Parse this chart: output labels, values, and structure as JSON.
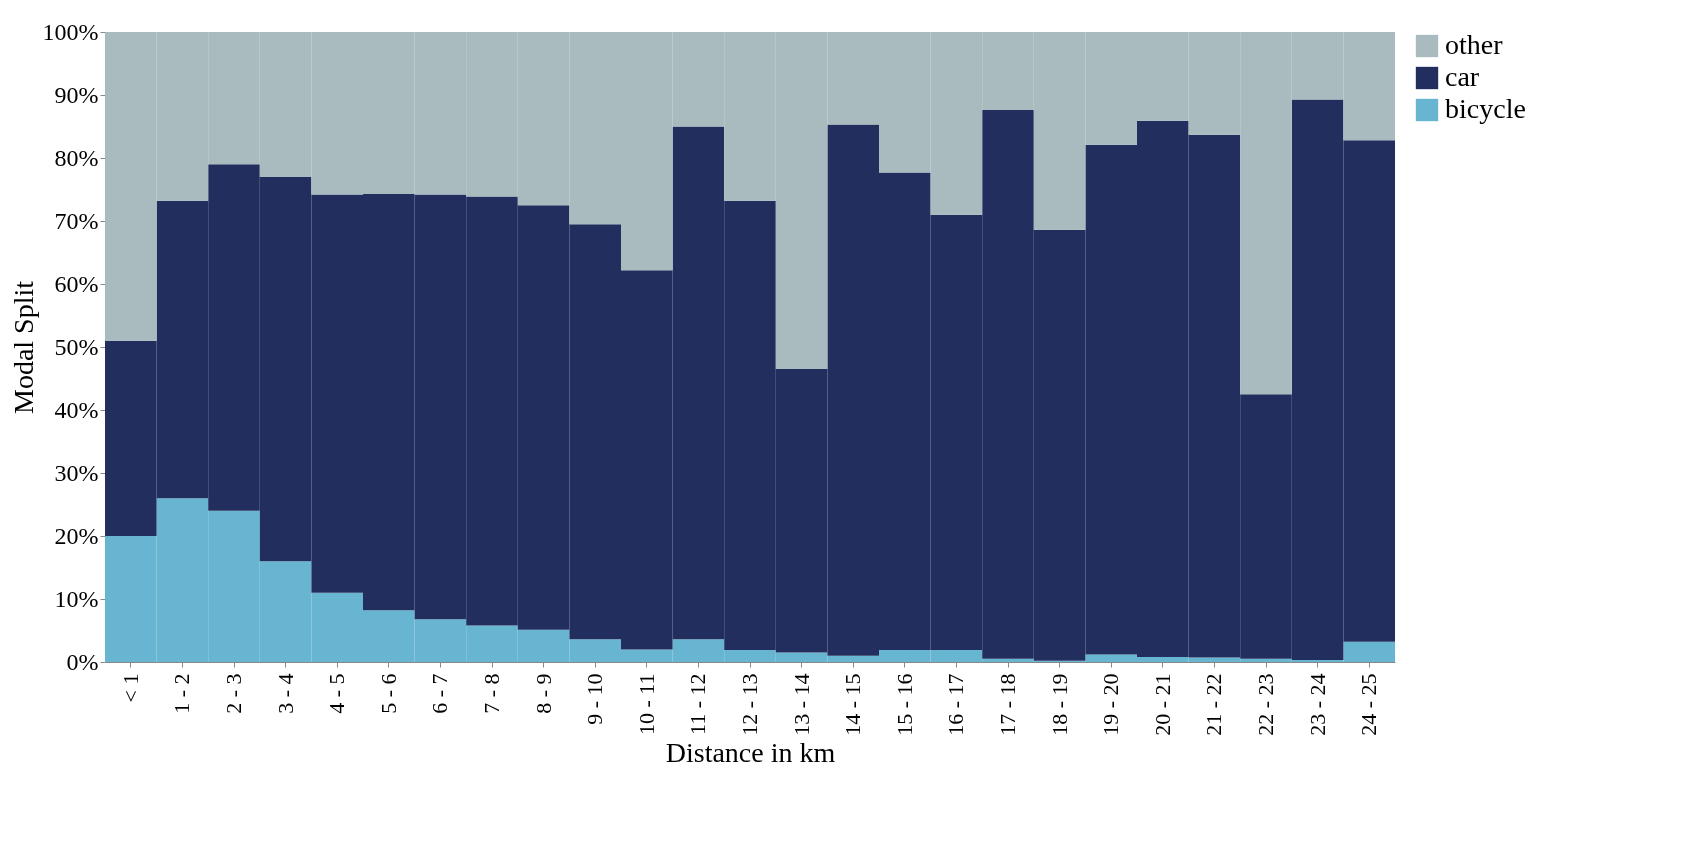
{
  "chart_data": {
    "type": "bar",
    "stacked": true,
    "xlabel": "Distance in km",
    "ylabel": "Modal Split",
    "categories": [
      "< 1",
      "1 - 2",
      "2 - 3",
      "3 - 4",
      "4 - 5",
      "5 - 6",
      "6 - 7",
      "7 - 8",
      "8 - 9",
      "9 - 10",
      "10 - 11",
      "11 - 12",
      "12 - 13",
      "13 - 14",
      "14 - 15",
      "15 - 16",
      "16 - 17",
      "17 - 18",
      "18 - 19",
      "19 - 20",
      "20 - 21",
      "21 - 22",
      "22 - 23",
      "23 - 24",
      "24 - 25"
    ],
    "series": [
      {
        "name": "bicycle",
        "color": "#67b5d0",
        "values": [
          20,
          26,
          24,
          16,
          11,
          8.2,
          6.8,
          5.8,
          5.1,
          3.6,
          2,
          3.6,
          1.9,
          1.5,
          1,
          1.9,
          1.9,
          0.5,
          0.2,
          1.2,
          0.8,
          0.7,
          0.5,
          0.3,
          3.2
        ]
      },
      {
        "name": "car",
        "color": "#212e5e",
        "values": [
          31,
          47.2,
          55,
          61,
          63.2,
          66.1,
          67.4,
          68.1,
          67.4,
          65.9,
          60.2,
          81.4,
          71.3,
          45,
          84.3,
          75.8,
          69.1,
          87.1,
          68.4,
          80.9,
          85.1,
          83,
          42,
          89,
          79.6
        ]
      },
      {
        "name": "other",
        "color": "#a9bbbf",
        "values": [
          49,
          26.8,
          21,
          23,
          25.8,
          25.7,
          25.8,
          26.1,
          27.5,
          30.5,
          37.8,
          15,
          26.8,
          53.5,
          14.7,
          22.3,
          29,
          12.4,
          31.4,
          17.9,
          14.1,
          16.3,
          57.5,
          10.7,
          17.2
        ]
      }
    ],
    "ylim": [
      0,
      100
    ],
    "yticks": [
      {
        "value": 0,
        "label": "0%"
      },
      {
        "value": 10,
        "label": "10%"
      },
      {
        "value": 20,
        "label": "20%"
      },
      {
        "value": 30,
        "label": "30%"
      },
      {
        "value": 40,
        "label": "40%"
      },
      {
        "value": 50,
        "label": "50%"
      },
      {
        "value": 60,
        "label": "60%"
      },
      {
        "value": 70,
        "label": "70%"
      },
      {
        "value": 80,
        "label": "80%"
      },
      {
        "value": 90,
        "label": "90%"
      },
      {
        "value": 100,
        "label": "100%"
      }
    ],
    "grid": false,
    "legend": "right"
  }
}
